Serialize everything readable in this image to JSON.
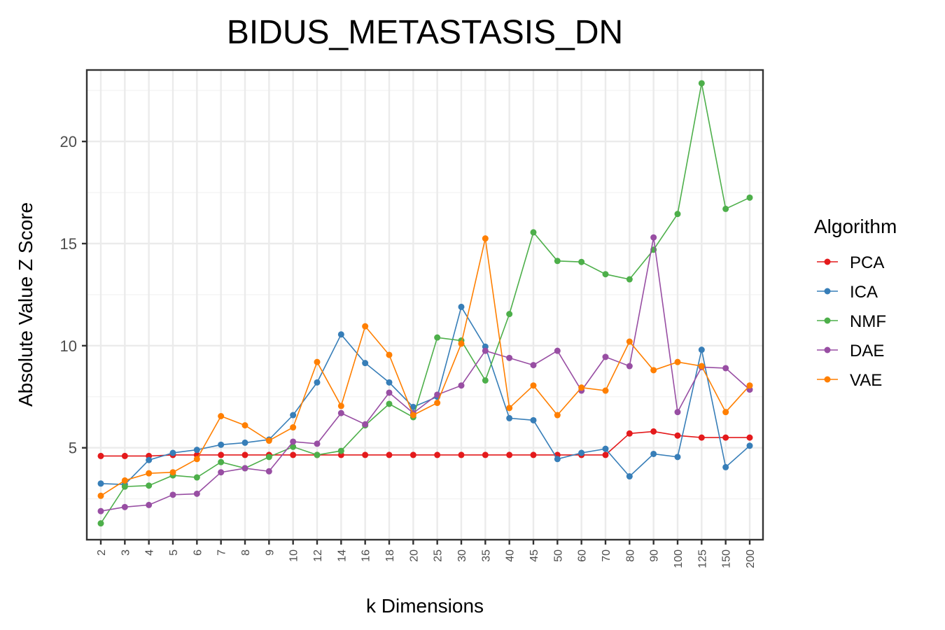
{
  "chart_data": {
    "type": "line",
    "title": "BIDUS_METASTASIS_DN",
    "xlabel": "k Dimensions",
    "ylabel": "Absolute Value Z Score",
    "categories": [
      "2",
      "3",
      "4",
      "5",
      "6",
      "7",
      "8",
      "9",
      "10",
      "12",
      "14",
      "16",
      "18",
      "20",
      "25",
      "30",
      "35",
      "40",
      "45",
      "50",
      "60",
      "70",
      "80",
      "90",
      "100",
      "125",
      "150",
      "200"
    ],
    "yticks": [
      5,
      10,
      15,
      20
    ],
    "ylim": [
      0.5,
      23.5
    ],
    "grid": true,
    "legend": {
      "title": "Algorithm",
      "placement": "right"
    },
    "series": [
      {
        "name": "PCA",
        "color": "#E41A1C",
        "values": [
          4.6,
          4.6,
          4.6,
          4.65,
          4.65,
          4.65,
          4.65,
          4.65,
          4.65,
          4.65,
          4.65,
          4.65,
          4.65,
          4.65,
          4.65,
          4.65,
          4.65,
          4.65,
          4.65,
          4.65,
          4.65,
          4.65,
          5.7,
          5.8,
          5.6,
          5.5,
          5.5,
          5.5
        ]
      },
      {
        "name": "ICA",
        "color": "#377EB8",
        "values": [
          3.25,
          3.2,
          4.4,
          4.75,
          4.9,
          5.15,
          5.25,
          5.4,
          6.6,
          8.2,
          10.55,
          9.15,
          8.2,
          7.0,
          7.5,
          11.9,
          9.95,
          6.45,
          6.35,
          4.45,
          4.75,
          4.95,
          3.6,
          4.7,
          4.55,
          9.8,
          4.05,
          5.1
        ]
      },
      {
        "name": "NMF",
        "color": "#4DAF4A",
        "values": [
          1.3,
          3.1,
          3.15,
          3.65,
          3.55,
          4.3,
          4.0,
          4.55,
          5.05,
          4.65,
          4.85,
          6.1,
          7.15,
          6.5,
          10.4,
          10.25,
          8.3,
          11.55,
          15.55,
          14.15,
          14.1,
          13.5,
          13.25,
          14.7,
          16.45,
          22.85,
          16.7,
          17.25
        ]
      },
      {
        "name": "DAE",
        "color": "#984EA3",
        "values": [
          1.9,
          2.1,
          2.2,
          2.7,
          2.75,
          3.8,
          4.0,
          3.85,
          5.3,
          5.2,
          6.7,
          6.15,
          7.7,
          6.7,
          7.6,
          8.05,
          9.75,
          9.4,
          9.05,
          9.75,
          7.8,
          9.45,
          9.0,
          15.3,
          6.75,
          8.95,
          8.9,
          7.85
        ]
      },
      {
        "name": "VAE",
        "color": "#FF7F00",
        "values": [
          2.65,
          3.4,
          3.75,
          3.8,
          4.45,
          6.55,
          6.1,
          5.35,
          6.0,
          9.2,
          7.05,
          10.95,
          9.55,
          6.6,
          7.2,
          10.1,
          15.25,
          6.95,
          8.05,
          6.6,
          7.95,
          7.8,
          10.2,
          8.8,
          9.2,
          9.0,
          6.75,
          8.05
        ]
      }
    ]
  }
}
